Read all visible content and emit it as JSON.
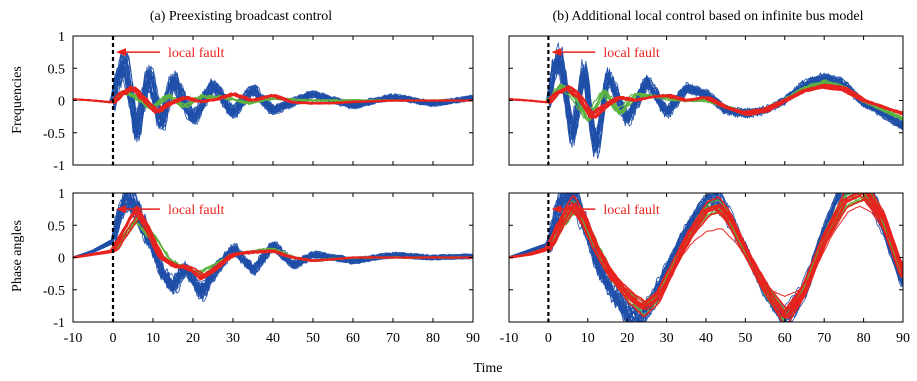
{
  "figure": {
    "xlabel": "Time",
    "row_labels": [
      "Frequencies",
      "Phase angles"
    ],
    "column_titles": [
      "(a) Preexisting broadcast control",
      "(b) Additional local control based on infinite bus model"
    ]
  },
  "colors": {
    "blue": "#1f4fa8",
    "green": "#5db33f",
    "red": "#e8231f",
    "fault_line": "#000000",
    "annotation": "#e8231f",
    "axes": "#000000"
  },
  "chart_data": [
    {
      "type": "line",
      "panel": "a-top",
      "title": "(a) Preexisting broadcast control",
      "ylabel": "Frequencies",
      "xlabel": "",
      "xlim": [
        -10,
        90
      ],
      "ylim": [
        -1,
        1
      ],
      "xticks": [
        -10,
        0,
        10,
        20,
        30,
        40,
        50,
        60,
        70,
        80,
        90
      ],
      "yticks": [
        -1,
        -0.5,
        0,
        0.5,
        1
      ],
      "fault_time": 0,
      "annotation": {
        "text": "local fault",
        "arrow_to": [
          0,
          0.75
        ]
      },
      "series": [
        {
          "color": "blue",
          "count": 26,
          "x": [
            -10,
            -5,
            0,
            1,
            3,
            6,
            9,
            12,
            15,
            20,
            25,
            30,
            35,
            40,
            50,
            60,
            70,
            80,
            90
          ],
          "values": [
            0.02,
            0.0,
            -0.03,
            0.3,
            0.6,
            -0.5,
            0.45,
            -0.4,
            0.35,
            -0.3,
            0.25,
            -0.2,
            0.18,
            -0.15,
            0.1,
            -0.08,
            0.06,
            -0.05,
            0.04
          ]
        },
        {
          "color": "green",
          "count": 6,
          "x": [
            -10,
            -5,
            0,
            3,
            6,
            10,
            14,
            18,
            22,
            28,
            34,
            40,
            50,
            60,
            70,
            80,
            90
          ],
          "values": [
            0.02,
            0.0,
            -0.03,
            0.15,
            0.05,
            -0.12,
            0.08,
            -0.1,
            0.06,
            0.05,
            -0.04,
            0.03,
            0.0,
            0.0,
            0.0,
            0.0,
            0.0
          ]
        },
        {
          "color": "red",
          "count": 8,
          "x": [
            -10,
            -5,
            0,
            2,
            5,
            8,
            11,
            14,
            18,
            22,
            26,
            30,
            35,
            40,
            45,
            50,
            55,
            60,
            70,
            80,
            90
          ],
          "values": [
            0.02,
            0.0,
            -0.03,
            0.1,
            0.2,
            0.0,
            -0.18,
            -0.05,
            0.05,
            -0.02,
            0.02,
            0.1,
            0.0,
            0.08,
            -0.03,
            -0.04,
            -0.04,
            -0.02,
            0.0,
            0.0,
            0.0
          ]
        }
      ]
    },
    {
      "type": "line",
      "panel": "b-top",
      "title": "(b) Additional local control based on infinite bus model",
      "ylabel": "",
      "xlabel": "",
      "xlim": [
        -10,
        90
      ],
      "ylim": [
        -1,
        1
      ],
      "xticks": [
        -10,
        0,
        10,
        20,
        30,
        40,
        50,
        60,
        70,
        80,
        90
      ],
      "yticks": [
        -1,
        -0.5,
        0,
        0.5,
        1
      ],
      "fault_time": 0,
      "annotation": {
        "text": "local fault",
        "arrow_to": [
          0,
          0.75
        ]
      },
      "series": [
        {
          "color": "blue",
          "count": 26,
          "x": [
            -10,
            -5,
            0,
            1,
            3,
            6,
            9,
            12,
            15,
            20,
            25,
            30,
            35,
            40,
            45,
            50,
            55,
            60,
            65,
            70,
            75,
            80,
            85,
            90
          ],
          "values": [
            0.02,
            0.0,
            -0.03,
            0.4,
            0.7,
            -0.6,
            0.5,
            -0.8,
            0.4,
            -0.3,
            0.3,
            -0.2,
            0.2,
            0.1,
            -0.15,
            -0.2,
            -0.15,
            0.0,
            0.25,
            0.35,
            0.25,
            -0.05,
            -0.2,
            -0.4
          ]
        },
        {
          "color": "green",
          "count": 6,
          "x": [
            -10,
            -5,
            0,
            3,
            6,
            10,
            14,
            18,
            22,
            28,
            34,
            40,
            45,
            50,
            55,
            60,
            65,
            70,
            75,
            80,
            85,
            90
          ],
          "values": [
            0.02,
            0.0,
            -0.03,
            0.25,
            0.1,
            -0.3,
            0.15,
            -0.2,
            0.1,
            0.05,
            0.0,
            0.0,
            -0.1,
            -0.2,
            -0.15,
            0.0,
            0.2,
            0.28,
            0.2,
            0.0,
            -0.15,
            -0.28
          ]
        },
        {
          "color": "red",
          "count": 8,
          "x": [
            -10,
            -5,
            0,
            2,
            5,
            8,
            11,
            14,
            18,
            22,
            26,
            30,
            35,
            40,
            45,
            50,
            55,
            60,
            65,
            70,
            75,
            80,
            85,
            90
          ],
          "values": [
            0.02,
            0.0,
            -0.03,
            0.1,
            0.2,
            0.05,
            -0.25,
            -0.1,
            0.05,
            0.0,
            0.05,
            0.08,
            0.0,
            0.05,
            -0.1,
            -0.2,
            -0.15,
            0.0,
            0.15,
            0.22,
            0.18,
            0.0,
            -0.1,
            -0.2
          ]
        }
      ]
    },
    {
      "type": "line",
      "panel": "a-bottom",
      "title": "",
      "ylabel": "Phase angles",
      "xlabel": "Time",
      "xlim": [
        -10,
        90
      ],
      "ylim": [
        -1,
        1
      ],
      "xticks": [
        -10,
        0,
        10,
        20,
        30,
        40,
        50,
        60,
        70,
        80,
        90
      ],
      "yticks": [
        -1,
        -0.5,
        0,
        0.5,
        1
      ],
      "fault_time": 0,
      "annotation": {
        "text": "local fault",
        "arrow_to": [
          0,
          0.75
        ]
      },
      "series": [
        {
          "color": "blue",
          "count": 26,
          "x": [
            -10,
            -5,
            0,
            1,
            3,
            5,
            7,
            9,
            12,
            15,
            18,
            22,
            25,
            30,
            35,
            40,
            45,
            50,
            60,
            70,
            80,
            90
          ],
          "values": [
            0.0,
            0.1,
            0.25,
            0.55,
            0.9,
            0.85,
            0.55,
            0.3,
            -0.2,
            -0.45,
            -0.15,
            -0.55,
            -0.25,
            0.15,
            -0.2,
            0.2,
            -0.12,
            0.05,
            -0.05,
            0.04,
            0.0,
            0.02
          ]
        },
        {
          "color": "green",
          "count": 6,
          "x": [
            -10,
            -5,
            0,
            3,
            6,
            10,
            14,
            18,
            22,
            25,
            30,
            35,
            40,
            45,
            50,
            60,
            70,
            80,
            90
          ],
          "values": [
            0.0,
            0.05,
            0.1,
            0.35,
            0.6,
            0.3,
            -0.05,
            -0.15,
            -0.25,
            -0.15,
            0.05,
            0.1,
            0.12,
            0.0,
            -0.05,
            0.0,
            0.0,
            0.0,
            0.0
          ]
        },
        {
          "color": "red",
          "count": 8,
          "x": [
            -10,
            -5,
            0,
            3,
            6,
            9,
            12,
            15,
            18,
            20,
            22,
            25,
            30,
            35,
            40,
            45,
            50,
            60,
            70,
            80,
            90
          ],
          "values": [
            0.0,
            0.05,
            0.1,
            0.4,
            0.7,
            0.4,
            0.0,
            -0.12,
            -0.15,
            -0.2,
            -0.3,
            -0.2,
            0.05,
            0.08,
            0.1,
            0.0,
            -0.05,
            0.0,
            0.0,
            0.0,
            0.0
          ]
        }
      ]
    },
    {
      "type": "line",
      "panel": "b-bottom",
      "title": "",
      "ylabel": "",
      "xlabel": "Time",
      "xlim": [
        -10,
        90
      ],
      "ylim": [
        -1,
        1
      ],
      "xticks": [
        -10,
        0,
        10,
        20,
        30,
        40,
        50,
        60,
        70,
        80,
        90
      ],
      "yticks": [
        -1,
        -0.5,
        0,
        0.5,
        1
      ],
      "fault_time": 0,
      "annotation": {
        "text": "local fault",
        "arrow_to": [
          0,
          0.75
        ]
      },
      "series": [
        {
          "color": "blue",
          "count": 26,
          "x": [
            -10,
            -5,
            0,
            2,
            4,
            7,
            10,
            13,
            16,
            20,
            23,
            27,
            30,
            35,
            40,
            43,
            46,
            50,
            55,
            60,
            65,
            70,
            75,
            80,
            85,
            90
          ],
          "values": [
            0.0,
            0.1,
            0.2,
            0.6,
            1.0,
            0.9,
            0.4,
            -0.2,
            -0.5,
            -0.85,
            -0.95,
            -0.6,
            -0.2,
            0.4,
            0.85,
            0.9,
            0.6,
            0.1,
            -0.5,
            -0.95,
            -0.5,
            0.4,
            1.1,
            1.2,
            0.5,
            -0.4
          ]
        },
        {
          "color": "green",
          "count": 6,
          "x": [
            -10,
            -5,
            0,
            3,
            6,
            9,
            12,
            16,
            20,
            24,
            28,
            32,
            36,
            40,
            43,
            46,
            50,
            55,
            60,
            65,
            70,
            75,
            80,
            85,
            90
          ],
          "values": [
            0.0,
            0.05,
            0.15,
            0.5,
            0.8,
            0.6,
            0.2,
            -0.3,
            -0.6,
            -0.8,
            -0.6,
            -0.1,
            0.4,
            0.75,
            0.8,
            0.6,
            0.1,
            -0.5,
            -0.98,
            -0.5,
            0.3,
            0.9,
            1.05,
            0.6,
            -0.3
          ]
        },
        {
          "color": "red",
          "count": 8,
          "x": [
            -10,
            -5,
            0,
            3,
            6,
            9,
            12,
            16,
            20,
            24,
            28,
            32,
            36,
            40,
            43,
            46,
            50,
            55,
            60,
            65,
            70,
            75,
            80,
            85,
            90
          ],
          "values": [
            0.0,
            0.05,
            0.15,
            0.55,
            0.85,
            0.6,
            0.15,
            -0.3,
            -0.6,
            -0.8,
            -0.6,
            -0.1,
            0.4,
            0.75,
            0.82,
            0.6,
            0.1,
            -0.5,
            -0.95,
            -0.5,
            0.3,
            0.9,
            1.05,
            0.6,
            -0.3
          ]
        },
        {
          "color": "red",
          "count": 1,
          "x": [
            -10,
            -5,
            0,
            3,
            6,
            9,
            12,
            16,
            20,
            24,
            28,
            32,
            36,
            40,
            44,
            48,
            52,
            56,
            60,
            64,
            68,
            72,
            76,
            79,
            82,
            86,
            90
          ],
          "values": [
            0.0,
            0.05,
            0.15,
            0.55,
            0.85,
            0.6,
            0.15,
            -0.25,
            -0.5,
            -0.7,
            -0.55,
            -0.15,
            0.2,
            0.4,
            0.45,
            0.2,
            -0.2,
            -0.5,
            -0.6,
            -0.5,
            -0.15,
            0.35,
            0.7,
            0.8,
            0.7,
            0.35,
            -0.1
          ]
        }
      ]
    }
  ]
}
